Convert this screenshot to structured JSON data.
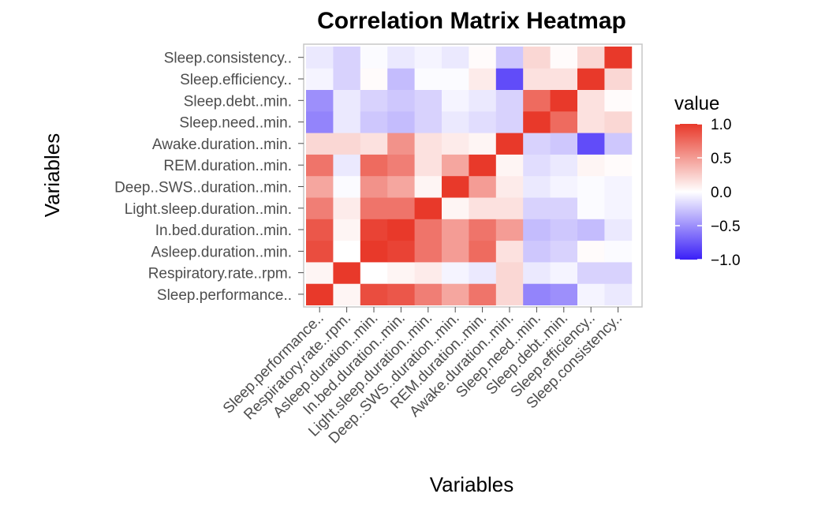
{
  "chart_data": {
    "type": "heatmap",
    "title": "Correlation Matrix Heatmap",
    "xlabel": "Variables",
    "ylabel": "Variables",
    "variables": [
      "Sleep.performance..",
      "Respiratory.rate..rpm.",
      "Asleep.duration..min.",
      "In.bed.duration..min.",
      "Light.sleep.duration..min.",
      "Deep..SWS..duration..min.",
      "REM.duration..min.",
      "Awake.duration..min.",
      "Sleep.need..min.",
      "Sleep.debt..min.",
      "Sleep.efficiency..",
      "Sleep.consistency.."
    ],
    "values": [
      [
        1.0,
        0.05,
        0.9,
        0.85,
        0.65,
        0.45,
        0.7,
        0.2,
        -0.55,
        -0.5,
        -0.05,
        -0.1
      ],
      [
        0.05,
        1.0,
        0.0,
        0.05,
        0.1,
        -0.05,
        -0.1,
        0.2,
        -0.1,
        -0.05,
        -0.2,
        -0.2
      ],
      [
        0.9,
        0.0,
        1.0,
        0.95,
        0.7,
        0.5,
        0.75,
        0.15,
        -0.25,
        -0.2,
        0.02,
        -0.02
      ],
      [
        0.85,
        0.05,
        0.95,
        1.0,
        0.7,
        0.5,
        0.7,
        0.5,
        -0.3,
        -0.25,
        -0.3,
        -0.1
      ],
      [
        0.65,
        0.1,
        0.7,
        0.7,
        1.0,
        0.05,
        0.15,
        0.15,
        -0.2,
        -0.2,
        -0.02,
        -0.05
      ],
      [
        0.45,
        -0.02,
        0.55,
        0.45,
        0.05,
        1.0,
        0.5,
        0.1,
        -0.1,
        -0.05,
        -0.02,
        -0.05
      ],
      [
        0.7,
        -0.1,
        0.75,
        0.65,
        0.15,
        0.45,
        1.0,
        0.05,
        -0.15,
        -0.1,
        0.05,
        0.02
      ],
      [
        0.2,
        0.2,
        0.15,
        0.55,
        0.15,
        0.1,
        0.05,
        1.0,
        -0.2,
        -0.25,
        -0.8,
        -0.25
      ],
      [
        -0.55,
        -0.1,
        -0.25,
        -0.3,
        -0.2,
        -0.1,
        -0.15,
        -0.2,
        1.0,
        0.75,
        0.15,
        0.2
      ],
      [
        -0.5,
        -0.1,
        -0.2,
        -0.25,
        -0.2,
        -0.05,
        -0.1,
        -0.2,
        0.75,
        1.0,
        0.15,
        0.02
      ],
      [
        -0.05,
        -0.2,
        0.02,
        -0.3,
        -0.02,
        -0.02,
        0.1,
        -0.8,
        0.15,
        0.15,
        1.0,
        0.2
      ],
      [
        -0.1,
        -0.2,
        -0.02,
        -0.1,
        -0.05,
        -0.1,
        0.02,
        -0.25,
        0.2,
        0.02,
        0.2,
        1.0
      ]
    ],
    "value_range": [
      -1.0,
      1.0
    ],
    "legend": {
      "title": "value",
      "ticks": [
        1.0,
        0.5,
        0.0,
        -0.5,
        -1.0
      ],
      "tick_labels": [
        "1.0",
        "0.5",
        "0.0",
        "−0.5",
        "−1.0"
      ],
      "placement": "right"
    },
    "colors": {
      "high": "#e8392a",
      "mid": "#ffffff",
      "low": "#3a1ff7"
    },
    "grid": false
  }
}
